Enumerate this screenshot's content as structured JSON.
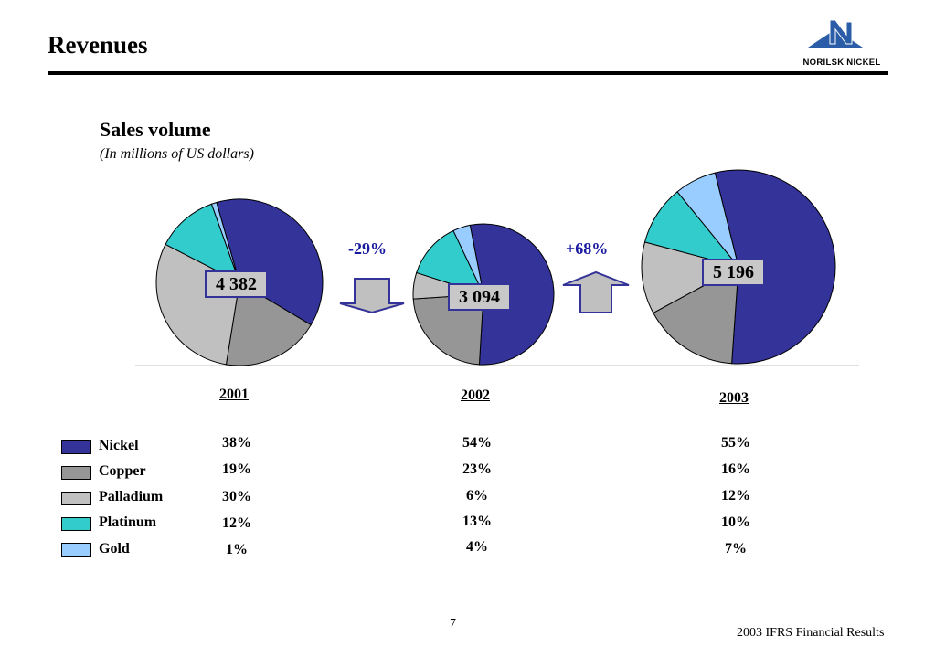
{
  "page": {
    "title": "Revenues",
    "logo_text": "NORILSK NICKEL",
    "page_number": "7",
    "footer": "2003 IFRS Financial Results"
  },
  "chart_data": {
    "type": "pie",
    "title": "Sales volume",
    "subtitle": "(In millions of US dollars)",
    "categories": [
      "Nickel",
      "Copper",
      "Palladium",
      "Platinum",
      "Gold"
    ],
    "colors": [
      "#333399",
      "#969696",
      "#c0c0c0",
      "#33cccc",
      "#99ccff"
    ],
    "pies": [
      {
        "year": "2001",
        "total": "4 382",
        "values": [
          38,
          19,
          30,
          12,
          1
        ],
        "labels": [
          "38%",
          "19%",
          "30%",
          "12%",
          "1%"
        ]
      },
      {
        "year": "2002",
        "total": "3 094",
        "values": [
          54,
          23,
          6,
          13,
          4
        ],
        "labels": [
          "54%",
          "23%",
          "6%",
          "13%",
          "4%"
        ]
      },
      {
        "year": "2003",
        "total": "5 196",
        "values": [
          55,
          16,
          12,
          10,
          7
        ],
        "labels": [
          "55%",
          "16%",
          "12%",
          "10%",
          "7%"
        ]
      }
    ],
    "changes": [
      "-29%",
      "+68%"
    ]
  }
}
